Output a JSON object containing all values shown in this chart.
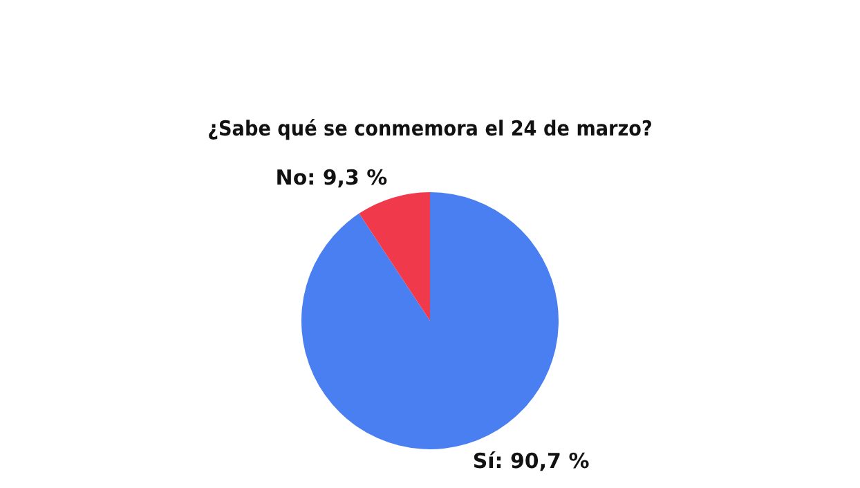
{
  "chart_data": {
    "type": "pie",
    "title": "¿Sabe qué se conmemora el 24 de marzo?",
    "categories": [
      "Sí",
      "No"
    ],
    "values": [
      90.7,
      9.3
    ],
    "colors": [
      "#4a7ff2",
      "#f0394a"
    ],
    "value_labels": [
      "90,7 %",
      "9,3 %"
    ],
    "legend": false
  }
}
